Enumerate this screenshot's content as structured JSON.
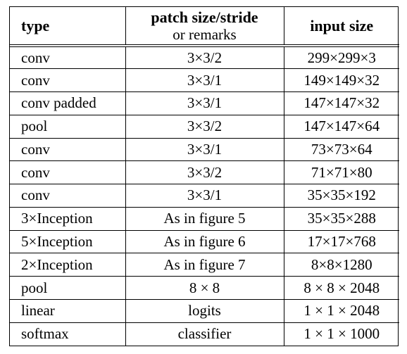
{
  "table": {
    "headers": {
      "type": "type",
      "patch_main": "patch size/stride",
      "patch_sub": "or remarks",
      "input": "input size"
    },
    "rows": [
      {
        "type": "conv",
        "patch": "3×3/2",
        "input": "299×299×3"
      },
      {
        "type": "conv",
        "patch": "3×3/1",
        "input": "149×149×32"
      },
      {
        "type": "conv padded",
        "patch": "3×3/1",
        "input": "147×147×32"
      },
      {
        "type": "pool",
        "patch": "3×3/2",
        "input": "147×147×64"
      },
      {
        "type": "conv",
        "patch": "3×3/1",
        "input": "73×73×64"
      },
      {
        "type": "conv",
        "patch": "3×3/2",
        "input": "71×71×80"
      },
      {
        "type": "conv",
        "patch": "3×3/1",
        "input": "35×35×192"
      },
      {
        "type": "3×Inception",
        "patch": "As in figure 5",
        "input": "35×35×288"
      },
      {
        "type": "5×Inception",
        "patch": "As in figure 6",
        "input": "17×17×768"
      },
      {
        "type": "2×Inception",
        "patch": "As in figure 7",
        "input": "8×8×1280"
      },
      {
        "type": "pool",
        "patch": "8 × 8",
        "input": "8 × 8 × 2048"
      },
      {
        "type": "linear",
        "patch": "logits",
        "input": "1 × 1 × 2048"
      },
      {
        "type": "softmax",
        "patch": "classifier",
        "input": "1 × 1 × 1000"
      }
    ]
  }
}
